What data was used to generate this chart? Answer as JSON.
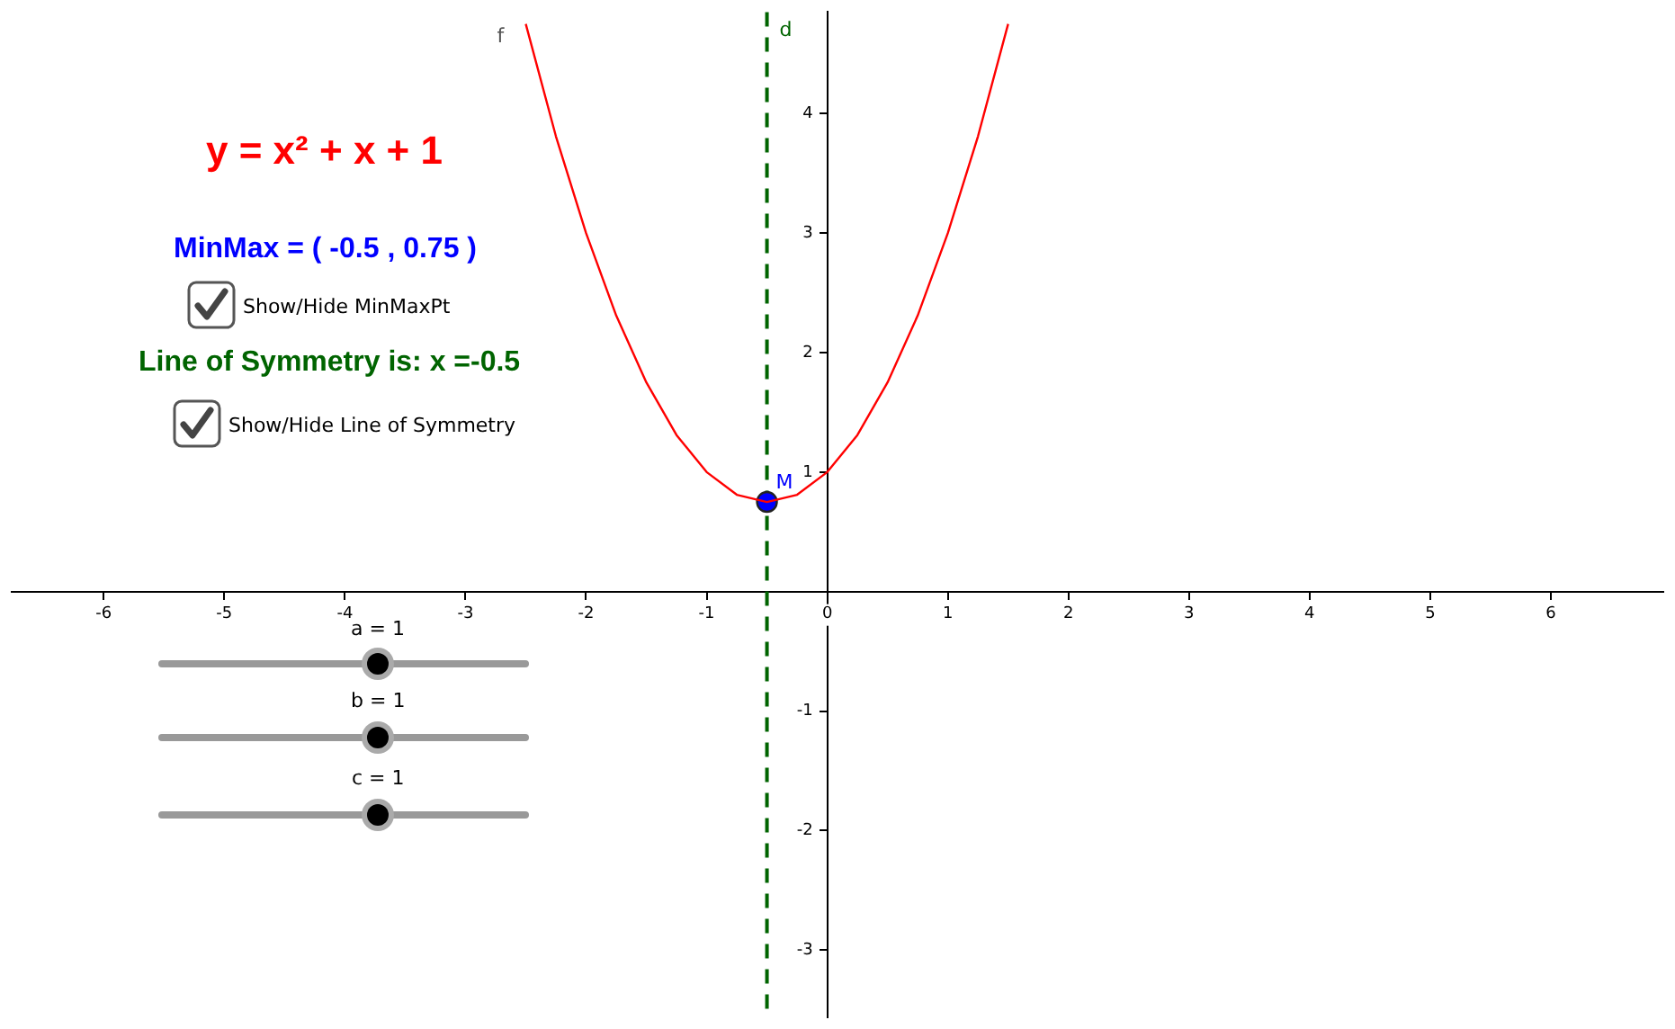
{
  "chart_data": {
    "type": "line",
    "xlim": [
      -6.76,
      6.93
    ],
    "ylim": [
      -3.56,
      4.85
    ],
    "xticks": [
      -6,
      -5,
      -4,
      -3,
      -2,
      -1,
      0,
      1,
      2,
      3,
      4,
      5,
      6
    ],
    "yticks": [
      -3,
      -2,
      -1,
      1,
      2,
      3,
      4
    ],
    "grid": false,
    "legend": false,
    "marker": "none",
    "line_style": "solid",
    "series": [
      {
        "name": "f",
        "color": "#ff0000",
        "x": [
          -2.5,
          -2.25,
          -2,
          -1.75,
          -1.5,
          -1.25,
          -1,
          -0.75,
          -0.5,
          -0.25,
          0,
          0.25,
          0.5,
          0.75,
          1,
          1.25,
          1.5
        ],
        "values": [
          4.75,
          3.81,
          3,
          2.31,
          1.75,
          1.31,
          1,
          0.81,
          0.75,
          0.81,
          1,
          1.31,
          1.75,
          2.31,
          3,
          3.81,
          4.75
        ]
      },
      {
        "name": "M",
        "type": "scatter",
        "marker": "circle",
        "color": "#0000ff",
        "x": [
          -0.5
        ],
        "values": [
          0.75
        ]
      }
    ],
    "ref_lines": [
      {
        "axis": "x",
        "value": -0.5,
        "label": "d",
        "color": "#006400",
        "line_style": "dashed"
      }
    ],
    "annotations": [
      "y = x² + x + 1",
      "MinMax = ( -0.5 , 0.75 )",
      "Show/Hide MinMaxPt",
      "Line of Symmetry is: x =-0.5",
      "Show/Hide Line of Symmetry",
      "a = 1",
      "b = 1",
      "c = 1"
    ]
  }
}
